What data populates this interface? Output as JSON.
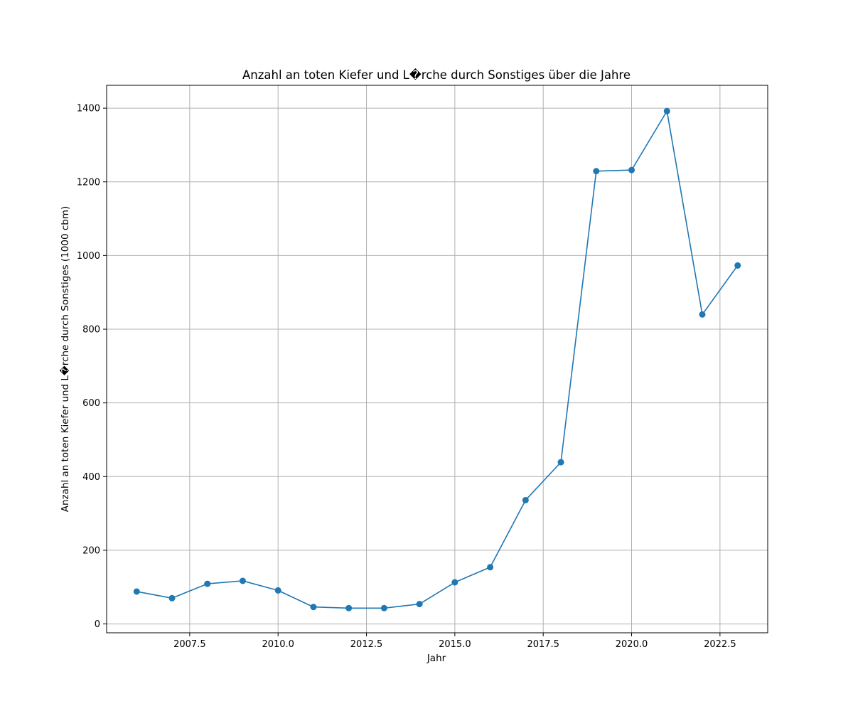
{
  "chart_data": {
    "type": "line",
    "title": "Anzahl an toten Kiefer und L�rche durch Sonstiges über die Jahre",
    "xlabel": "Jahr",
    "ylabel": "Anzahl an toten Kiefer und L�rche durch Sonstiges (1000 cbm)",
    "xlim": [
      2005.15,
      2023.85
    ],
    "ylim": [
      -24,
      1462
    ],
    "xticks": [
      2007.5,
      2010.0,
      2012.5,
      2015.0,
      2017.5,
      2020.0,
      2022.5
    ],
    "xtick_labels": [
      "2007.5",
      "2010.0",
      "2012.5",
      "2015.0",
      "2017.5",
      "2020.0",
      "2022.5"
    ],
    "yticks": [
      0,
      200,
      400,
      600,
      800,
      1000,
      1200,
      1400
    ],
    "ytick_labels": [
      "0",
      "200",
      "400",
      "600",
      "800",
      "1000",
      "1200",
      "1400"
    ],
    "grid": true,
    "line_color": "#1f77b4",
    "marker": "circle",
    "x": [
      2006,
      2007,
      2008,
      2009,
      2010,
      2011,
      2012,
      2013,
      2014,
      2015,
      2016,
      2017,
      2018,
      2019,
      2020,
      2021,
      2022,
      2023
    ],
    "y": [
      88,
      70,
      109,
      117,
      91,
      46,
      43,
      43,
      54,
      113,
      154,
      336,
      439,
      1229,
      1232,
      1392,
      840,
      973
    ]
  }
}
